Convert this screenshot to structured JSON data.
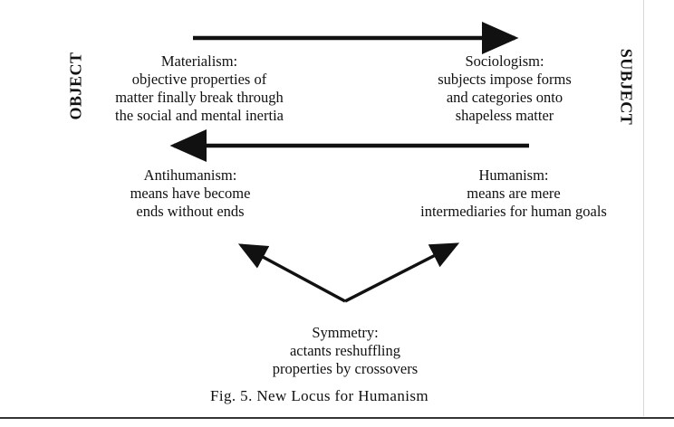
{
  "figure": {
    "left_label": "OBJECT",
    "right_label": "SUBJECT",
    "materialism": {
      "title": "Materialism:",
      "lines": [
        "objective properties of",
        "matter finally break through",
        "the social and mental inertia"
      ]
    },
    "sociologism": {
      "title": "Sociologism:",
      "lines": [
        "subjects impose forms",
        "and categories onto",
        "shapeless matter"
      ]
    },
    "antihumanism": {
      "title": "Antihumanism:",
      "lines": [
        "means have become",
        "ends without ends"
      ]
    },
    "humanism": {
      "title": "Humanism:",
      "lines": [
        "means are mere",
        "intermediaries for human goals"
      ]
    },
    "symmetry": {
      "title": "Symmetry:",
      "lines": [
        "actants reshuffling",
        "properties by crossovers"
      ]
    },
    "caption": "Fig. 5. New Locus for Humanism"
  }
}
